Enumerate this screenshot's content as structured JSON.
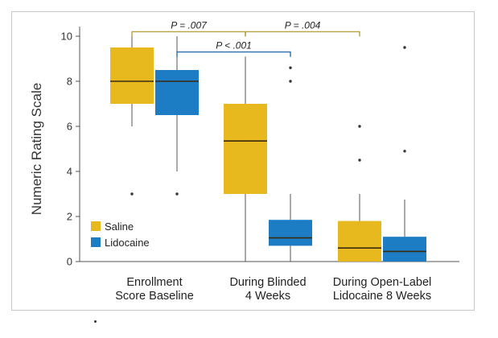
{
  "chart_data": {
    "type": "boxplot",
    "ylabel": "Numeric Rating Scale",
    "ylim": [
      0,
      10
    ],
    "yticks": [
      "0",
      "2",
      "4",
      "6",
      "8",
      "10"
    ],
    "categories": [
      [
        "Enrollment",
        "Score Baseline"
      ],
      [
        "During Blinded",
        "4 Weeks"
      ],
      [
        "During Open-Label",
        "Lidocaine 8 Weeks"
      ]
    ],
    "series": [
      {
        "name": "Saline",
        "color": "#e8b81f",
        "boxes": [
          {
            "min": 6,
            "q1": 7,
            "median": 8,
            "q3": 9.5,
            "max": 10,
            "outliers": [
              3
            ]
          },
          {
            "min": 0,
            "q1": 3,
            "median": 5.35,
            "q3": 7,
            "max": 9.1,
            "outliers": []
          },
          {
            "min": 0,
            "q1": 0,
            "median": 0.6,
            "q3": 1.8,
            "max": 3,
            "outliers": [
              4.5,
              6
            ]
          }
        ]
      },
      {
        "name": "Lidocaine",
        "color": "#1c7cc4",
        "boxes": [
          {
            "min": 4,
            "q1": 6.5,
            "median": 8,
            "q3": 8.5,
            "max": 10,
            "outliers": [
              3
            ]
          },
          {
            "min": 0,
            "q1": 0.7,
            "median": 1.05,
            "q3": 1.85,
            "max": 3,
            "outliers": [
              8,
              8.6
            ]
          },
          {
            "min": 0,
            "q1": 0,
            "median": 0.45,
            "q3": 1.1,
            "max": 2.75,
            "outliers": [
              4.9,
              9.5
            ]
          }
        ]
      }
    ],
    "annotations": [
      {
        "label": "P = .007",
        "color": "#b5a243",
        "from": [
          0,
          0
        ],
        "to": [
          1,
          0
        ],
        "level": 10.2
      },
      {
        "label": "P < .001",
        "color": "#2a6fb0",
        "from": [
          0,
          1
        ],
        "to": [
          1,
          1
        ],
        "level": 9.3
      },
      {
        "label": "P = .004",
        "color": "#b5a243",
        "from": [
          1,
          0
        ],
        "to": [
          2,
          0
        ],
        "level": 10.2
      }
    ],
    "legend": {
      "position": "bottom-left"
    }
  }
}
